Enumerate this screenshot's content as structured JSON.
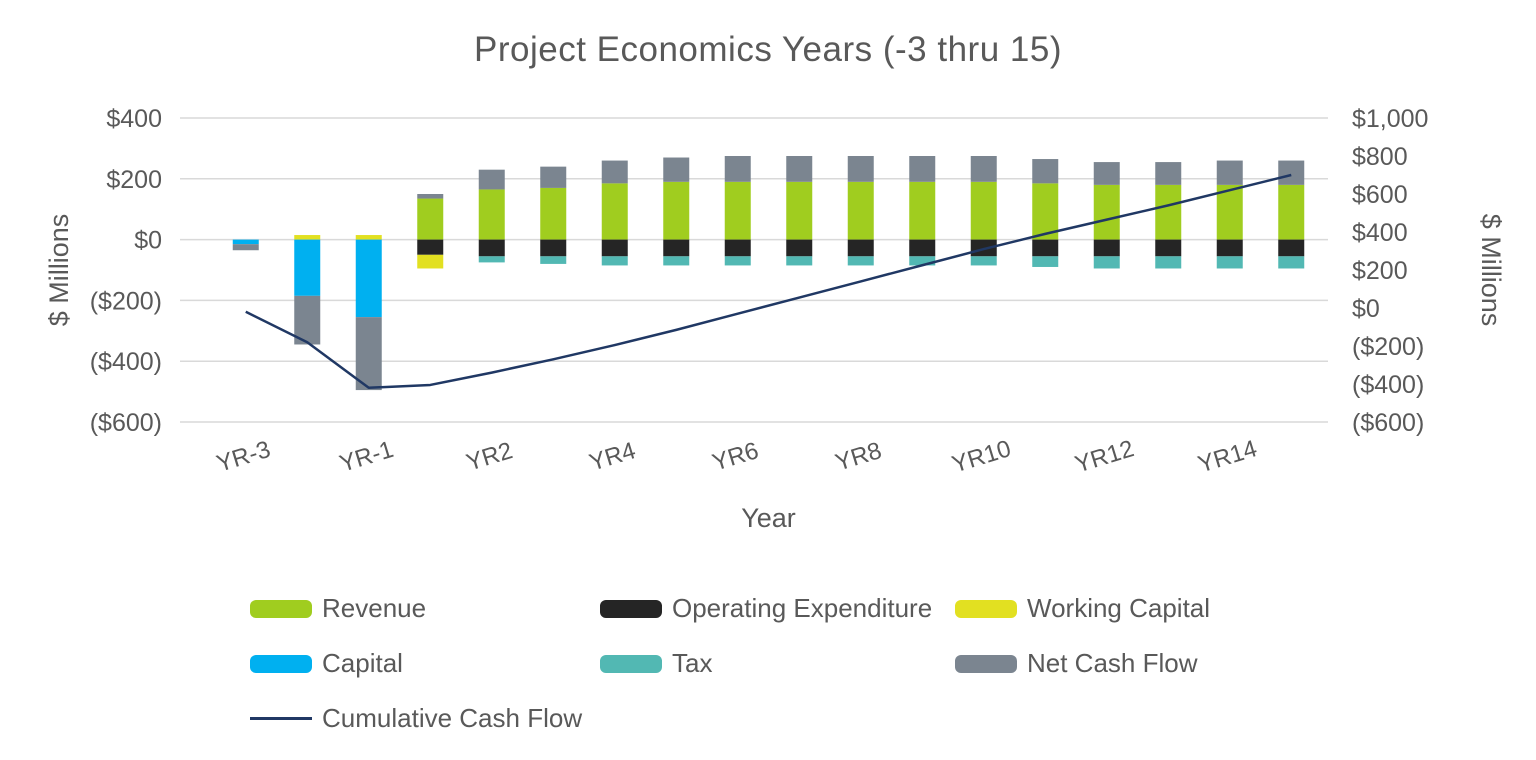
{
  "chart_data": {
    "type": "combo-stacked-bar-line",
    "title": "Project Economics Years (-3 thru 15)",
    "xlabel": "Year",
    "categories": [
      "YR-3",
      "YR-2",
      "YR-1",
      "YR1",
      "YR2",
      "YR3",
      "YR4",
      "YR5",
      "YR6",
      "YR7",
      "YR8",
      "YR9",
      "YR10",
      "YR11",
      "YR12",
      "YR13",
      "YR14",
      "YR15"
    ],
    "x_tick_shown_indices": [
      0,
      2,
      4,
      6,
      8,
      10,
      12,
      14,
      16
    ],
    "x_tick_labels_shown": [
      "YR-3",
      "YR-1",
      "YR2",
      "YR4",
      "YR6",
      "YR8",
      "YR10",
      "YR12",
      "YR14"
    ],
    "left_axis": {
      "label": "$ Millions",
      "min": -600,
      "max": 400,
      "ticks": [
        {
          "v": 400,
          "label": "$400"
        },
        {
          "v": 200,
          "label": "$200"
        },
        {
          "v": 0,
          "label": "$0"
        },
        {
          "v": -200,
          "label": "($200)"
        },
        {
          "v": -400,
          "label": "($400)"
        },
        {
          "v": -600,
          "label": "($600)"
        }
      ]
    },
    "right_axis": {
      "label": "$ Millions",
      "min": -600,
      "max": 1000,
      "ticks": [
        {
          "v": 1000,
          "label": "$1,000"
        },
        {
          "v": 800,
          "label": "$800"
        },
        {
          "v": 600,
          "label": "$600"
        },
        {
          "v": 400,
          "label": "$400"
        },
        {
          "v": 200,
          "label": "$200"
        },
        {
          "v": 0,
          "label": "$0"
        },
        {
          "v": -200,
          "label": "($200)"
        },
        {
          "v": -400,
          "label": "($400)"
        },
        {
          "v": -600,
          "label": "($600)"
        }
      ]
    },
    "bar_series": [
      {
        "name": "Revenue",
        "color": "#a0cd1f",
        "values": [
          0,
          0,
          0,
          135,
          165,
          170,
          185,
          190,
          190,
          190,
          190,
          190,
          190,
          185,
          180,
          180,
          180,
          180
        ]
      },
      {
        "name": "Operating Expenditure",
        "color": "#252525",
        "values": [
          0,
          0,
          0,
          -50,
          -55,
          -55,
          -55,
          -55,
          -55,
          -55,
          -55,
          -55,
          -55,
          -55,
          -55,
          -55,
          -55,
          -55
        ]
      },
      {
        "name": "Working Capital",
        "color": "#e2e021",
        "values": [
          0,
          15,
          15,
          -45,
          0,
          0,
          0,
          0,
          0,
          0,
          0,
          0,
          0,
          0,
          0,
          0,
          0,
          0
        ]
      },
      {
        "name": "Capital",
        "color": "#00b0f0",
        "values": [
          -15,
          -185,
          -255,
          0,
          0,
          0,
          0,
          0,
          0,
          0,
          0,
          0,
          0,
          0,
          0,
          0,
          0,
          0
        ]
      },
      {
        "name": "Tax",
        "color": "#52b8b3",
        "values": [
          0,
          0,
          0,
          0,
          -20,
          -25,
          -30,
          -30,
          -30,
          -30,
          -30,
          -30,
          -30,
          -35,
          -40,
          -40,
          -40,
          -40
        ]
      },
      {
        "name": "Net Cash Flow",
        "color": "#7b8590",
        "values": [
          -20,
          -160,
          -240,
          15,
          65,
          70,
          75,
          80,
          85,
          85,
          85,
          85,
          85,
          80,
          75,
          75,
          80,
          80
        ]
      }
    ],
    "line_series": {
      "name": "Cumulative Cash Flow",
      "color": "#203864",
      "axis": "right",
      "values": [
        -20,
        -180,
        -420,
        -405,
        -340,
        -270,
        -195,
        -115,
        -30,
        55,
        140,
        225,
        310,
        390,
        465,
        540,
        620,
        700
      ]
    },
    "grid_color": "#d9d9d9",
    "text_color": "#595959",
    "legend_position": "bottom"
  },
  "legend": {
    "items": [
      {
        "label": "Revenue",
        "color": "#a0cd1f",
        "type": "swatch",
        "row": 0,
        "col": 0
      },
      {
        "label": "Operating Expenditure",
        "color": "#252525",
        "type": "swatch",
        "row": 0,
        "col": 1
      },
      {
        "label": "Working Capital",
        "color": "#e2e021",
        "type": "swatch",
        "row": 0,
        "col": 2
      },
      {
        "label": "Capital",
        "color": "#00b0f0",
        "type": "swatch",
        "row": 1,
        "col": 0
      },
      {
        "label": "Tax",
        "color": "#52b8b3",
        "type": "swatch",
        "row": 1,
        "col": 1
      },
      {
        "label": "Net Cash Flow",
        "color": "#7b8590",
        "type": "swatch",
        "row": 1,
        "col": 2
      },
      {
        "label": "Cumulative Cash Flow",
        "color": "#203864",
        "type": "line",
        "row": 2,
        "col": 0
      }
    ]
  }
}
